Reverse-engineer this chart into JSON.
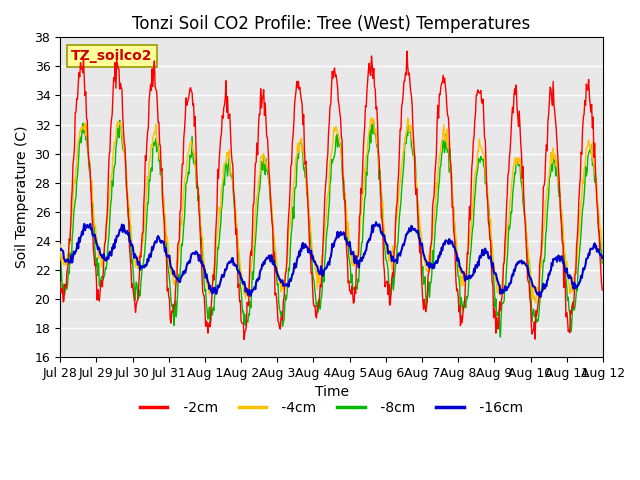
{
  "title": "Tonzi Soil CO2 Profile: Tree (West) Temperatures",
  "xlabel": "Time",
  "ylabel": "Soil Temperature (C)",
  "ylim": [
    16,
    38
  ],
  "yticks": [
    16,
    18,
    20,
    22,
    24,
    26,
    28,
    30,
    32,
    34,
    36,
    38
  ],
  "bg_color": "#e8e8e8",
  "line_colors": {
    "-2cm": "#ff0000",
    "-4cm": "#ffc000",
    "-8cm": "#00bb00",
    "-16cm": "#0000cc"
  },
  "legend_label": "TZ_soilco2",
  "legend_label_color": "#cc0000",
  "legend_box_color": "#ffff99",
  "tick_labels": [
    "Jul 28",
    "Jul 29",
    "Jul 30",
    "Jul 31",
    "Aug 1",
    "Aug 2",
    "Aug 3",
    "Aug 4",
    "Aug 5",
    "Aug 6",
    "Aug 7",
    "Aug 8",
    "Aug 9",
    "Aug 10",
    "Aug 11",
    "Aug 12"
  ],
  "n_days": 15,
  "samples_per_day": 48,
  "amplitude_2cm": 8.0,
  "mean_2cm": 27.0,
  "amplitude_4cm": 4.8,
  "mean_4cm": 26.2,
  "amplitude_8cm": 5.5,
  "mean_8cm": 25.0,
  "amplitude_16cm": 1.15,
  "mean_16cm": 22.7,
  "grid_color": "#ffffff",
  "title_fontsize": 12,
  "label_fontsize": 10,
  "tick_fontsize": 9
}
